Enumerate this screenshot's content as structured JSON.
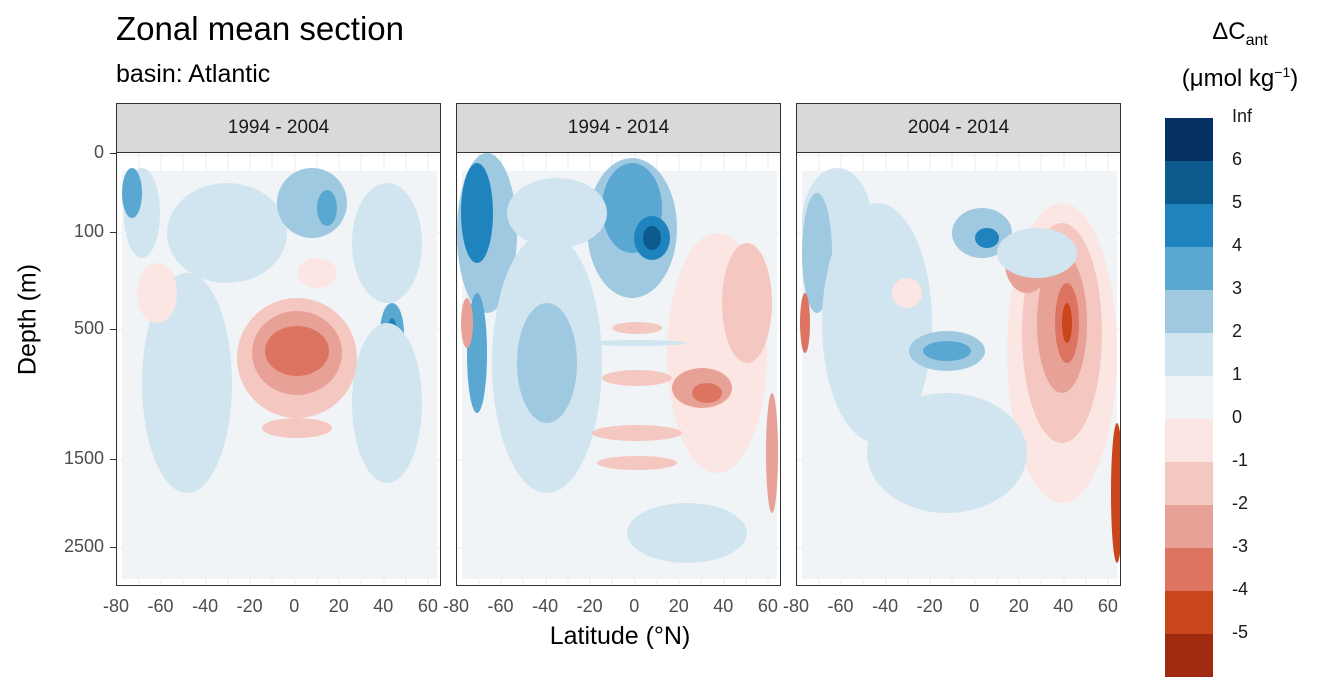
{
  "chart_data": {
    "type": "contour",
    "title": "Zonal mean section",
    "subtitle": "basin: Atlantic",
    "xlabel": "Latitude (°N)",
    "ylabel": "Depth (m)",
    "x_ticks": [
      "-80",
      "-60",
      "-40",
      "-20",
      "0",
      "20",
      "40",
      "60"
    ],
    "xlim": [
      -80,
      65
    ],
    "y_ticks": [
      "0",
      "100",
      "500",
      "1500",
      "2500"
    ],
    "y_scale": "reversed-sqrt",
    "panels": [
      {
        "label": "1994 - 2004"
      },
      {
        "label": "1994 - 2014"
      },
      {
        "label": "2004 - 2014"
      }
    ],
    "legend": {
      "title": "ΔC",
      "title_subscript": "ant",
      "unit": "(μmol kg",
      "unit_sup": "−1",
      "unit_end": ")",
      "placement": "right",
      "labels": [
        "Inf",
        "6",
        "5",
        "4",
        "3",
        "2",
        "1",
        "0",
        "-1",
        "-2",
        "-3",
        "-4",
        "-5"
      ],
      "colors": [
        "#053061",
        "#0d5a8f",
        "#1f84bd",
        "#5aa8d1",
        "#9fc8e1",
        "#d1e5f0",
        "#f1f4f7",
        "#fbe6e3",
        "#f4c7c0",
        "#e8a196",
        "#dd7462",
        "#c9461c",
        "#9e2a0f"
      ]
    }
  }
}
